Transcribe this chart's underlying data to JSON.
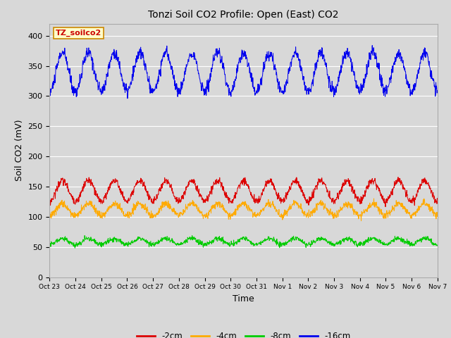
{
  "title": "Tonzi Soil CO2 Profile: Open (East) CO2",
  "ylabel": "Soil CO2 (mV)",
  "xlabel": "Time",
  "annotation_text": "TZ_soilco2",
  "annotation_color": "#cc0000",
  "annotation_bg": "#ffffcc",
  "annotation_border": "#cc8800",
  "fig_bg": "#d8d8d8",
  "plot_bg": "#d8d8d8",
  "ylim": [
    0,
    420
  ],
  "yticks": [
    0,
    50,
    100,
    150,
    200,
    250,
    300,
    350,
    400
  ],
  "n_days": 15,
  "points_per_day": 96,
  "series": {
    "depth_2cm": {
      "color": "#dd0000",
      "label": "-2cm",
      "base": 143,
      "amp": 17,
      "noise": 3
    },
    "depth_4cm": {
      "color": "#ffaa00",
      "label": "-4cm",
      "base": 112,
      "amp": 10,
      "noise": 3
    },
    "depth_8cm": {
      "color": "#00cc00",
      "label": "-8cm",
      "base": 59,
      "amp": 5,
      "noise": 2
    },
    "depth_16cm": {
      "color": "#0000ee",
      "label": "-16cm",
      "base": 340,
      "amp": 32,
      "noise": 5
    }
  },
  "xtick_labels": [
    "Oct 23",
    "Oct 24",
    "Oct 25",
    "Oct 26",
    "Oct 27",
    "Oct 28",
    "Oct 29",
    "Oct 30",
    "Oct 31",
    "Nov 1",
    "Nov 2",
    "Nov 3",
    "Nov 4",
    "Nov 5",
    "Nov 6",
    "Nov 7"
  ],
  "legend_entries": [
    {
      "label": "-2cm",
      "color": "#dd0000"
    },
    {
      "label": "-4cm",
      "color": "#ffaa00"
    },
    {
      "label": "-8cm",
      "color": "#00cc00"
    },
    {
      "label": "-16cm",
      "color": "#0000ee"
    }
  ]
}
